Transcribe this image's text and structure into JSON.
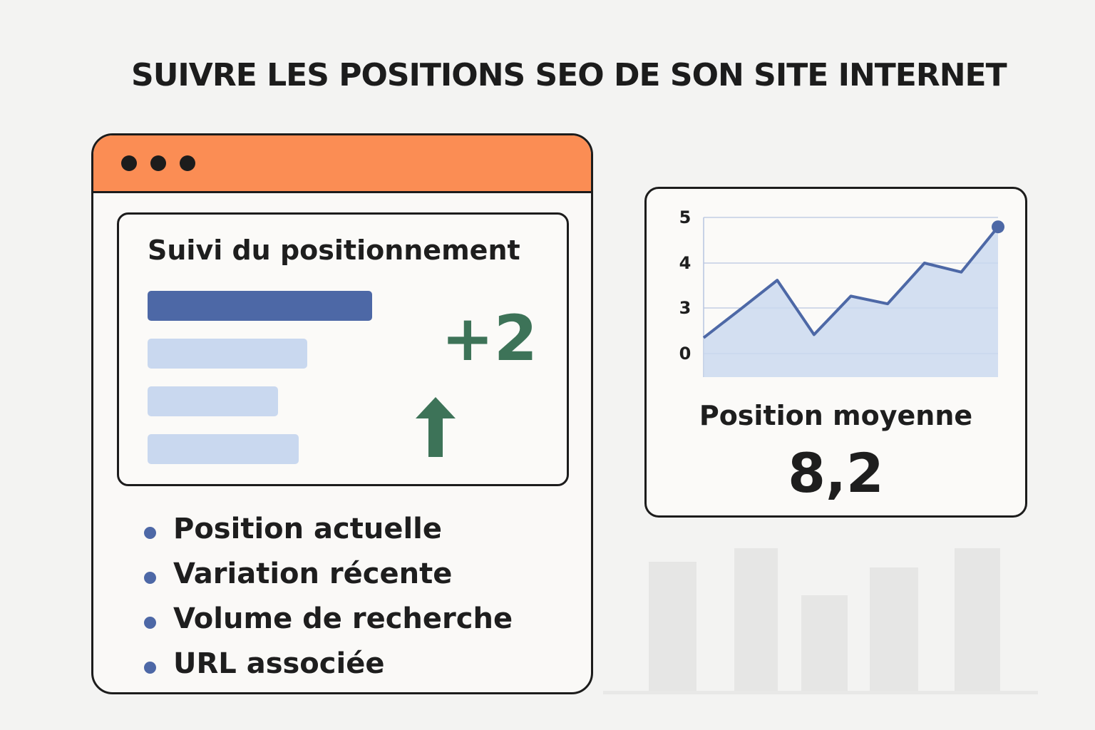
{
  "title": "SUIVRE LES POSITIONS SEO DE SON SITE INTERNET",
  "colors": {
    "accent_orange": "#fb8d54",
    "primary_blue": "#4d68a6",
    "light_blue": "#c9d8ef",
    "positive_green": "#3d7358",
    "border": "#1c1c1c"
  },
  "window": {
    "dots": [
      "dot",
      "dot",
      "dot"
    ],
    "panel": {
      "title": "Suivi du positionnement",
      "change": "+2",
      "arrow_icon": "arrow-up-icon"
    },
    "legend": [
      "Position actuelle",
      "Variation récente",
      "Volume de recherche",
      "URL associée"
    ]
  },
  "chart_data": {
    "type": "area",
    "y_tick_labels": [
      "5",
      "4",
      "3",
      "0"
    ],
    "values": [
      0.35,
      0.98,
      1.62,
      0.42,
      1.27,
      1.1,
      2.0,
      1.8,
      2.8
    ]
  },
  "summary": {
    "label": "Position moyenne",
    "value": "8,2"
  }
}
